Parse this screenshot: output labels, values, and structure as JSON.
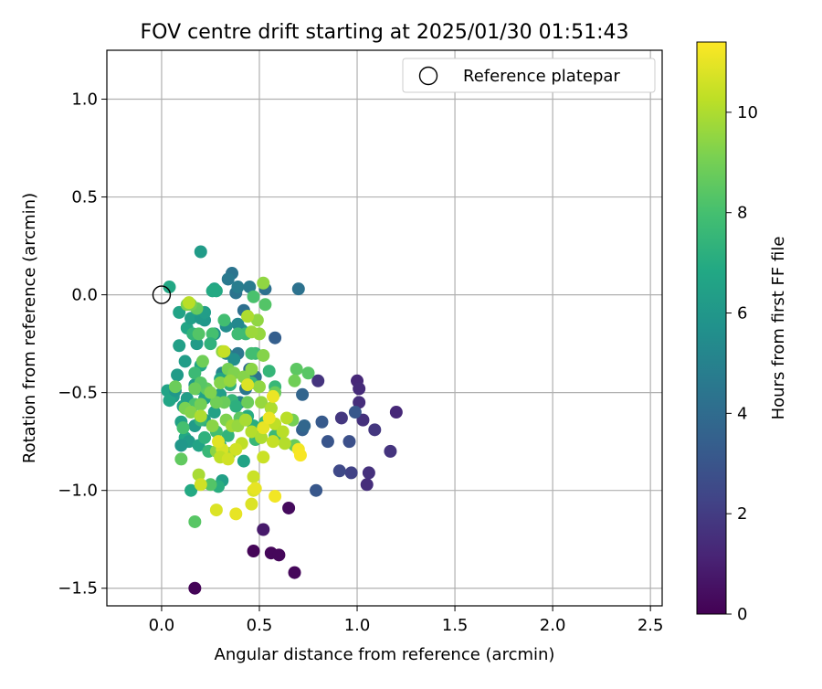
{
  "chart_data": {
    "type": "scatter",
    "title": "FOV centre drift starting at 2025/01/30 01:51:43",
    "xlabel": "Angular distance from reference (arcmin)",
    "ylabel": "Rotation from reference (arcmin)",
    "xlim": [
      -0.28,
      2.56
    ],
    "ylim": [
      -1.59,
      1.25
    ],
    "xticks": [
      0.0,
      0.5,
      1.0,
      1.5,
      2.0,
      2.5
    ],
    "xtick_labels": [
      "0.0",
      "0.5",
      "1.0",
      "1.5",
      "2.0",
      "2.5"
    ],
    "yticks": [
      -1.5,
      -1.0,
      -0.5,
      0.0,
      0.5,
      1.0
    ],
    "ytick_labels": [
      "−1.5",
      "−1.0",
      "−0.5",
      "0.0",
      "0.5",
      "1.0"
    ],
    "grid": true,
    "legend": {
      "placement": "top-right",
      "entries": [
        "Reference platepar"
      ]
    },
    "reference_point": {
      "x": 0.0,
      "y": 0.0,
      "marker": "open-circle"
    },
    "colorbar": {
      "label": "Hours from first FF file",
      "colormap": "viridis",
      "range": [
        0,
        11.4
      ],
      "ticks": [
        0,
        2,
        4,
        6,
        8,
        10
      ],
      "tick_labels": [
        "0",
        "2",
        "4",
        "6",
        "8",
        "10"
      ]
    },
    "points": [
      [
        0.17,
        -1.5,
        0.1
      ],
      [
        0.47,
        -1.31,
        0.1
      ],
      [
        0.56,
        -1.32,
        0.2
      ],
      [
        0.6,
        -1.33,
        0.2
      ],
      [
        0.68,
        -1.42,
        0.2
      ],
      [
        0.65,
        -1.09,
        0.3
      ],
      [
        0.52,
        -1.2,
        0.8
      ],
      [
        1.0,
        -0.44,
        1.3
      ],
      [
        1.01,
        -0.48,
        1.4
      ],
      [
        1.01,
        -0.55,
        1.5
      ],
      [
        1.2,
        -0.6,
        1.3
      ],
      [
        1.03,
        -0.64,
        1.6
      ],
      [
        1.09,
        -0.69,
        1.8
      ],
      [
        1.17,
        -0.8,
        1.7
      ],
      [
        1.06,
        -0.91,
        1.6
      ],
      [
        1.05,
        -0.97,
        1.5
      ],
      [
        0.92,
        -0.63,
        1.8
      ],
      [
        0.8,
        -0.44,
        1.7
      ],
      [
        0.97,
        -0.91,
        2.2
      ],
      [
        0.91,
        -0.9,
        2.5
      ],
      [
        0.96,
        -0.75,
        2.8
      ],
      [
        0.85,
        -0.75,
        3.0
      ],
      [
        0.99,
        -0.6,
        3.1
      ],
      [
        0.82,
        -0.65,
        3.2
      ],
      [
        0.79,
        -1.0,
        3.1
      ],
      [
        0.72,
        -0.69,
        3.5
      ],
      [
        0.73,
        -0.67,
        3.8
      ],
      [
        0.72,
        -0.51,
        3.7
      ],
      [
        0.58,
        -0.22,
        3.4
      ],
      [
        0.7,
        0.03,
        4.3
      ],
      [
        0.53,
        0.03,
        4.2
      ],
      [
        0.38,
        0.01,
        4.4
      ],
      [
        0.36,
        0.11,
        4.4
      ],
      [
        0.34,
        0.08,
        4.6
      ],
      [
        0.39,
        0.04,
        4.8
      ],
      [
        0.45,
        0.04,
        4.7
      ],
      [
        0.42,
        -0.08,
        4.2
      ],
      [
        0.39,
        -0.3,
        4.5
      ],
      [
        0.45,
        -0.38,
        4.0
      ],
      [
        0.48,
        -0.42,
        4.3
      ],
      [
        0.43,
        -0.48,
        4.5
      ],
      [
        0.4,
        -0.55,
        5.0
      ],
      [
        0.31,
        -0.4,
        5.2
      ],
      [
        0.33,
        -0.3,
        5.1
      ],
      [
        0.37,
        -0.33,
        5.6
      ],
      [
        0.41,
        -0.18,
        5.8
      ],
      [
        0.39,
        -0.15,
        5.3
      ],
      [
        0.33,
        -0.16,
        5.5
      ],
      [
        0.27,
        -0.2,
        5.7
      ],
      [
        0.22,
        -0.13,
        6.0
      ],
      [
        0.18,
        -0.25,
        6.2
      ],
      [
        0.17,
        -0.46,
        6.1
      ],
      [
        0.13,
        -0.53,
        6.3
      ],
      [
        0.11,
        -0.57,
        6.5
      ],
      [
        0.06,
        -0.52,
        6.3
      ],
      [
        0.03,
        -0.49,
        6.6
      ],
      [
        0.04,
        -0.54,
        6.7
      ],
      [
        0.07,
        -0.49,
        6.0
      ],
      [
        0.08,
        -0.41,
        6.2
      ],
      [
        0.09,
        -0.26,
        6.4
      ],
      [
        0.12,
        -0.34,
        6.3
      ],
      [
        0.09,
        -0.09,
        6.6
      ],
      [
        0.13,
        -0.17,
        6.7
      ],
      [
        0.15,
        -0.12,
        6.4
      ],
      [
        0.2,
        -0.12,
        6.1
      ],
      [
        0.22,
        -0.09,
        6.3
      ],
      [
        0.2,
        0.22,
        6.2
      ],
      [
        0.27,
        0.03,
        6.6
      ],
      [
        0.28,
        0.02,
        6.9
      ],
      [
        0.2,
        -0.36,
        6.8
      ],
      [
        0.18,
        -0.48,
        7.0
      ],
      [
        0.22,
        -0.53,
        6.5
      ],
      [
        0.3,
        -0.51,
        6.3
      ],
      [
        0.27,
        -0.6,
        6.5
      ],
      [
        0.22,
        -0.64,
        6.4
      ],
      [
        0.17,
        -0.67,
        6.2
      ],
      [
        0.1,
        -0.65,
        6.5
      ],
      [
        0.12,
        -0.73,
        6.8
      ],
      [
        0.14,
        -0.75,
        6.2
      ],
      [
        0.1,
        -0.77,
        6.0
      ],
      [
        0.19,
        -0.77,
        6.6
      ],
      [
        0.3,
        -0.77,
        6.9
      ],
      [
        0.31,
        -0.95,
        6.4
      ],
      [
        0.29,
        -0.98,
        7.1
      ],
      [
        0.15,
        -1.0,
        6.9
      ],
      [
        0.42,
        -0.85,
        6.6
      ],
      [
        0.3,
        -0.43,
        6.7
      ],
      [
        0.35,
        -0.46,
        7.3
      ],
      [
        0.36,
        -0.54,
        7.5
      ],
      [
        0.38,
        -0.57,
        7.2
      ],
      [
        0.44,
        -0.62,
        7.0
      ],
      [
        0.47,
        -0.67,
        7.1
      ],
      [
        0.34,
        -0.72,
        7.4
      ],
      [
        0.48,
        -0.74,
        7.6
      ],
      [
        0.5,
        -0.72,
        7.4
      ],
      [
        0.53,
        -0.65,
        7.5
      ],
      [
        0.58,
        -0.72,
        7.7
      ],
      [
        0.58,
        -0.47,
        7.6
      ],
      [
        0.56,
        -0.58,
        7.8
      ],
      [
        0.55,
        -0.39,
        7.5
      ],
      [
        0.46,
        -0.45,
        7.6
      ],
      [
        0.48,
        -0.3,
        7.6
      ],
      [
        0.46,
        -0.3,
        7.9
      ],
      [
        0.43,
        -0.2,
        7.7
      ],
      [
        0.39,
        -0.2,
        7.8
      ],
      [
        0.32,
        -0.13,
        7.9
      ],
      [
        0.26,
        -0.2,
        8.0
      ],
      [
        0.25,
        -0.25,
        7.3
      ],
      [
        0.16,
        -0.2,
        7.4
      ],
      [
        0.17,
        -0.4,
        7.7
      ],
      [
        0.17,
        -0.56,
        8.1
      ],
      [
        0.2,
        -0.64,
        7.5
      ],
      [
        0.22,
        -0.73,
        7.3
      ],
      [
        0.11,
        -0.68,
        8.0
      ],
      [
        0.1,
        -0.84,
        8.6
      ],
      [
        0.17,
        -1.16,
        8.4
      ],
      [
        0.24,
        -0.8,
        7.6
      ],
      [
        0.25,
        -0.97,
        8.3
      ],
      [
        0.28,
        -0.7,
        7.9
      ],
      [
        0.47,
        -0.01,
        8.1
      ],
      [
        0.53,
        -0.05,
        8.3
      ],
      [
        0.69,
        -0.38,
        8.5
      ],
      [
        0.75,
        -0.4,
        8.4
      ],
      [
        0.68,
        -0.44,
        8.9
      ],
      [
        0.67,
        -0.64,
        9.0
      ],
      [
        0.68,
        -0.77,
        8.7
      ],
      [
        0.58,
        -0.5,
        8.8
      ],
      [
        0.44,
        -0.55,
        8.8
      ],
      [
        0.4,
        -0.63,
        8.5
      ],
      [
        0.32,
        -0.55,
        8.8
      ],
      [
        0.28,
        -0.55,
        8.9
      ],
      [
        0.23,
        -0.48,
        8.6
      ],
      [
        0.2,
        -0.45,
        8.4
      ],
      [
        0.17,
        -0.48,
        8.8
      ],
      [
        0.21,
        -0.34,
        8.9
      ],
      [
        0.19,
        -0.2,
        8.3
      ],
      [
        0.18,
        -0.07,
        8.7
      ],
      [
        0.15,
        -0.05,
        9.0
      ],
      [
        0.13,
        -0.05,
        9.2
      ],
      [
        0.07,
        -0.47,
        8.8
      ],
      [
        0.12,
        -0.58,
        9.1
      ],
      [
        0.15,
        -0.6,
        9.3
      ],
      [
        0.2,
        -0.56,
        9.0
      ],
      [
        0.25,
        -0.5,
        9.2
      ],
      [
        0.3,
        -0.45,
        9.3
      ],
      [
        0.34,
        -0.38,
        9.0
      ],
      [
        0.37,
        -0.4,
        9.2
      ],
      [
        0.42,
        -0.42,
        9.3
      ],
      [
        0.46,
        -0.38,
        9.4
      ],
      [
        0.5,
        -0.47,
        9.5
      ],
      [
        0.51,
        -0.55,
        9.6
      ],
      [
        0.52,
        -0.31,
        9.3
      ],
      [
        0.5,
        -0.2,
        9.6
      ],
      [
        0.49,
        -0.13,
        9.5
      ],
      [
        0.44,
        -0.11,
        9.4
      ],
      [
        0.46,
        -0.19,
        9.7
      ],
      [
        0.31,
        -0.29,
        9.5
      ],
      [
        0.35,
        -0.44,
        9.6
      ],
      [
        0.33,
        -0.64,
        9.2
      ],
      [
        0.26,
        -0.67,
        9.4
      ],
      [
        0.28,
        -0.8,
        9.4
      ],
      [
        0.35,
        -0.81,
        9.6
      ],
      [
        0.36,
        -0.67,
        9.8
      ],
      [
        0.39,
        -0.67,
        9.6
      ],
      [
        0.43,
        -0.64,
        9.9
      ],
      [
        0.46,
        -0.7,
        10.1
      ],
      [
        0.51,
        -0.73,
        10.0
      ],
      [
        0.56,
        -0.58,
        10.0
      ],
      [
        0.58,
        -0.66,
        10.3
      ],
      [
        0.62,
        -0.7,
        10.2
      ],
      [
        0.64,
        -0.63,
        10.2
      ],
      [
        0.63,
        -0.76,
        10.1
      ],
      [
        0.57,
        -0.75,
        10.4
      ],
      [
        0.52,
        -0.83,
        10.5
      ],
      [
        0.41,
        -0.76,
        10.3
      ],
      [
        0.38,
        -0.79,
        10.6
      ],
      [
        0.31,
        -0.79,
        10.7
      ],
      [
        0.3,
        -0.83,
        10.3
      ],
      [
        0.34,
        -0.84,
        10.6
      ],
      [
        0.2,
        -0.62,
        10.0
      ],
      [
        0.19,
        -0.92,
        9.9
      ],
      [
        0.2,
        -0.97,
        10.6
      ],
      [
        0.47,
        -0.93,
        10.5
      ],
      [
        0.47,
        -1.0,
        10.8
      ],
      [
        0.48,
        -0.99,
        11.0
      ],
      [
        0.46,
        -1.07,
        10.8
      ],
      [
        0.28,
        -1.1,
        10.8
      ],
      [
        0.38,
        -1.12,
        11.0
      ],
      [
        0.58,
        -1.03,
        11.2
      ],
      [
        0.52,
        -0.68,
        11.0
      ],
      [
        0.55,
        -0.63,
        11.1
      ],
      [
        0.7,
        -0.79,
        11.2
      ],
      [
        0.71,
        -0.82,
        11.3
      ],
      [
        0.57,
        -0.52,
        11.1
      ],
      [
        0.44,
        -0.46,
        10.8
      ],
      [
        0.29,
        -0.75,
        10.9
      ],
      [
        0.52,
        0.06,
        9.5
      ],
      [
        0.14,
        -0.04,
        10.2
      ],
      [
        0.44,
        -0.11,
        10.0
      ],
      [
        0.32,
        -0.29,
        10.4
      ],
      [
        0.04,
        0.04,
        6.8
      ],
      [
        0.26,
        0.02,
        6.9
      ]
    ]
  }
}
